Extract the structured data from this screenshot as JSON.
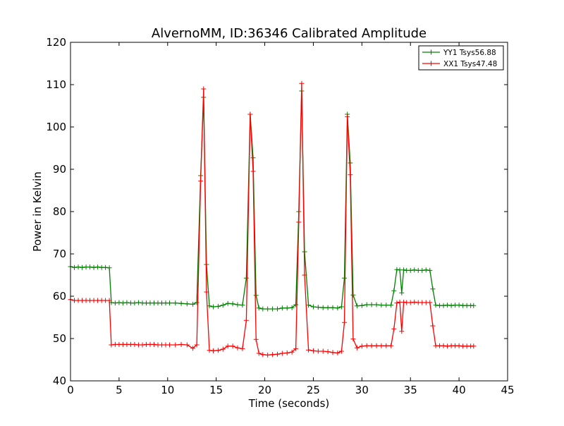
{
  "chart_data": {
    "type": "line",
    "title": "AlvernoMM, ID:36346 Calibrated Amplitude",
    "xlabel": "Time (seconds)",
    "ylabel": "Power in Kelvin",
    "xlim": [
      0,
      45
    ],
    "ylim": [
      40,
      120
    ],
    "xticks": [
      0,
      5,
      10,
      15,
      20,
      25,
      30,
      35,
      40,
      45
    ],
    "yticks": [
      40,
      50,
      60,
      70,
      80,
      90,
      100,
      110,
      120
    ],
    "grid": false,
    "legend_position": "top-right",
    "marker": "+",
    "series": [
      {
        "name": "YY1 Tsys56.88",
        "color": "#008000",
        "x": [
          0,
          0.4,
          0.8,
          1.2,
          1.6,
          2.0,
          2.4,
          2.8,
          3.2,
          3.6,
          4.0,
          4.2,
          4.6,
          5.0,
          5.4,
          5.8,
          6.2,
          6.6,
          7.0,
          7.4,
          7.8,
          8.2,
          8.6,
          9.0,
          9.4,
          9.8,
          10.2,
          10.8,
          11.4,
          12.0,
          12.6,
          13.0,
          13.4,
          13.7,
          14.0,
          14.3,
          14.7,
          15.2,
          15.7,
          16.2,
          16.7,
          17.2,
          17.7,
          18.1,
          18.5,
          18.8,
          19.1,
          19.4,
          19.8,
          20.3,
          20.8,
          21.3,
          21.8,
          22.3,
          22.8,
          23.2,
          23.5,
          23.8,
          24.1,
          24.5,
          25.0,
          25.5,
          26.0,
          26.5,
          27.0,
          27.5,
          27.9,
          28.2,
          28.5,
          28.8,
          29.1,
          29.5,
          30.0,
          30.5,
          31.0,
          31.5,
          32.0,
          32.5,
          33.0,
          33.3,
          33.6,
          33.9,
          34.1,
          34.3,
          34.6,
          35.0,
          35.4,
          35.8,
          36.2,
          36.6,
          37.0,
          37.3,
          37.6,
          38.0,
          38.4,
          38.8,
          39.2,
          39.6,
          40.0,
          40.4,
          40.8,
          41.2,
          41.5
        ],
        "y": [
          67.0,
          66.8,
          66.9,
          66.8,
          66.9,
          66.9,
          66.8,
          66.9,
          66.8,
          66.8,
          66.7,
          58.5,
          58.4,
          58.5,
          58.4,
          58.5,
          58.4,
          58.4,
          58.5,
          58.4,
          58.4,
          58.4,
          58.4,
          58.4,
          58.4,
          58.4,
          58.4,
          58.4,
          58.3,
          58.2,
          58.1,
          58.5,
          88.5,
          107.0,
          67.5,
          57.7,
          57.5,
          57.6,
          57.9,
          58.3,
          58.2,
          58.0,
          57.9,
          64.3,
          103.0,
          92.7,
          60.2,
          57.2,
          57.0,
          57.0,
          57.0,
          57.0,
          57.2,
          57.2,
          57.3,
          58.0,
          80.0,
          108.5,
          70.5,
          57.9,
          57.5,
          57.4,
          57.3,
          57.3,
          57.3,
          57.2,
          57.5,
          64.3,
          103.0,
          91.5,
          60.3,
          57.7,
          57.8,
          58.0,
          58.0,
          58.0,
          57.9,
          57.9,
          57.9,
          61.3,
          66.3,
          66.2,
          60.8,
          66.2,
          66.1,
          66.1,
          66.2,
          66.1,
          66.1,
          66.2,
          66.1,
          61.7,
          57.9,
          57.8,
          57.8,
          57.9,
          57.8,
          57.9,
          57.9,
          57.8,
          57.8,
          57.8,
          57.8
        ]
      },
      {
        "name": "XX1 Tsys47.48",
        "color": "#ff0000",
        "x": [
          0,
          0.4,
          0.8,
          1.2,
          1.6,
          2.0,
          2.4,
          2.8,
          3.2,
          3.6,
          4.0,
          4.2,
          4.6,
          5.0,
          5.4,
          5.8,
          6.2,
          6.6,
          7.0,
          7.4,
          7.8,
          8.2,
          8.6,
          9.0,
          9.4,
          9.8,
          10.2,
          10.8,
          11.4,
          12.0,
          12.6,
          13.0,
          13.4,
          13.7,
          14.0,
          14.3,
          14.7,
          15.2,
          15.7,
          16.2,
          16.7,
          17.2,
          17.7,
          18.1,
          18.5,
          18.8,
          19.1,
          19.4,
          19.8,
          20.3,
          20.8,
          21.3,
          21.8,
          22.3,
          22.8,
          23.2,
          23.5,
          23.8,
          24.1,
          24.5,
          25.0,
          25.5,
          26.0,
          26.5,
          27.0,
          27.5,
          27.9,
          28.2,
          28.5,
          28.8,
          29.1,
          29.5,
          30.0,
          30.5,
          31.0,
          31.5,
          32.0,
          32.5,
          33.0,
          33.3,
          33.6,
          33.9,
          34.1,
          34.3,
          34.6,
          35.0,
          35.4,
          35.8,
          36.2,
          36.6,
          37.0,
          37.3,
          37.6,
          38.0,
          38.4,
          38.8,
          39.2,
          39.6,
          40.0,
          40.4,
          40.8,
          41.2,
          41.5
        ],
        "y": [
          59.2,
          59.0,
          59.0,
          59.0,
          59.0,
          59.0,
          59.0,
          59.0,
          59.0,
          59.0,
          59.0,
          48.5,
          48.6,
          48.6,
          48.6,
          48.6,
          48.6,
          48.6,
          48.5,
          48.5,
          48.6,
          48.6,
          48.6,
          48.5,
          48.5,
          48.5,
          48.5,
          48.5,
          48.6,
          48.5,
          47.7,
          48.5,
          87.2,
          109.0,
          61.0,
          47.2,
          47.1,
          47.2,
          47.5,
          48.2,
          48.2,
          47.8,
          47.6,
          54.3,
          103.0,
          89.5,
          49.8,
          46.5,
          46.2,
          46.1,
          46.2,
          46.3,
          46.5,
          46.6,
          46.8,
          47.6,
          77.5,
          110.3,
          65.0,
          47.3,
          47.1,
          47.0,
          47.0,
          46.9,
          46.7,
          46.6,
          47.0,
          53.8,
          102.4,
          88.7,
          49.9,
          47.8,
          48.2,
          48.3,
          48.3,
          48.3,
          48.3,
          48.3,
          48.3,
          52.3,
          58.4,
          58.6,
          51.7,
          58.6,
          58.5,
          58.5,
          58.6,
          58.5,
          58.5,
          58.5,
          58.5,
          53.0,
          48.3,
          48.3,
          48.3,
          48.2,
          48.3,
          48.3,
          48.3,
          48.2,
          48.2,
          48.2,
          48.2
        ]
      }
    ]
  }
}
